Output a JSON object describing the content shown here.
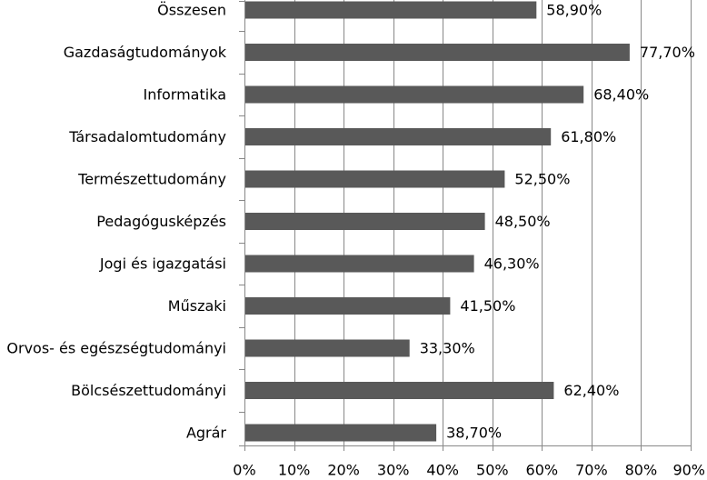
{
  "chart_data": {
    "type": "bar",
    "orientation": "horizontal",
    "title": "",
    "xlabel": "",
    "ylabel": "",
    "categories": [
      "Összesen",
      "Gazdaságtudományok",
      "Informatika",
      "Társadalomtudomány",
      "Természettudomány",
      "Pedagógusképzés",
      "Jogi és igazgatási",
      "Műszaki",
      "Orvos- és egészségtudományi",
      "Bölcsészettudományi",
      "Agrár"
    ],
    "values": [
      58.9,
      77.7,
      68.4,
      61.8,
      52.5,
      48.5,
      46.3,
      41.5,
      33.3,
      62.4,
      38.7
    ],
    "data_labels": [
      "58,90%",
      "77,70%",
      "68,40%",
      "61,80%",
      "52,50%",
      "48,50%",
      "46,30%",
      "41,50%",
      "33,30%",
      "62,40%",
      "38,70%"
    ],
    "xlim": [
      0,
      90
    ],
    "x_ticks": [
      0,
      10,
      20,
      30,
      40,
      50,
      60,
      70,
      80,
      90
    ],
    "x_tick_labels": [
      "0%",
      "10%",
      "20%",
      "30%",
      "40%",
      "50%",
      "60%",
      "70%",
      "80%",
      "90%"
    ],
    "grid": "vertical",
    "legend": "none",
    "bar_color": "#595959",
    "grid_color": "#888888"
  }
}
